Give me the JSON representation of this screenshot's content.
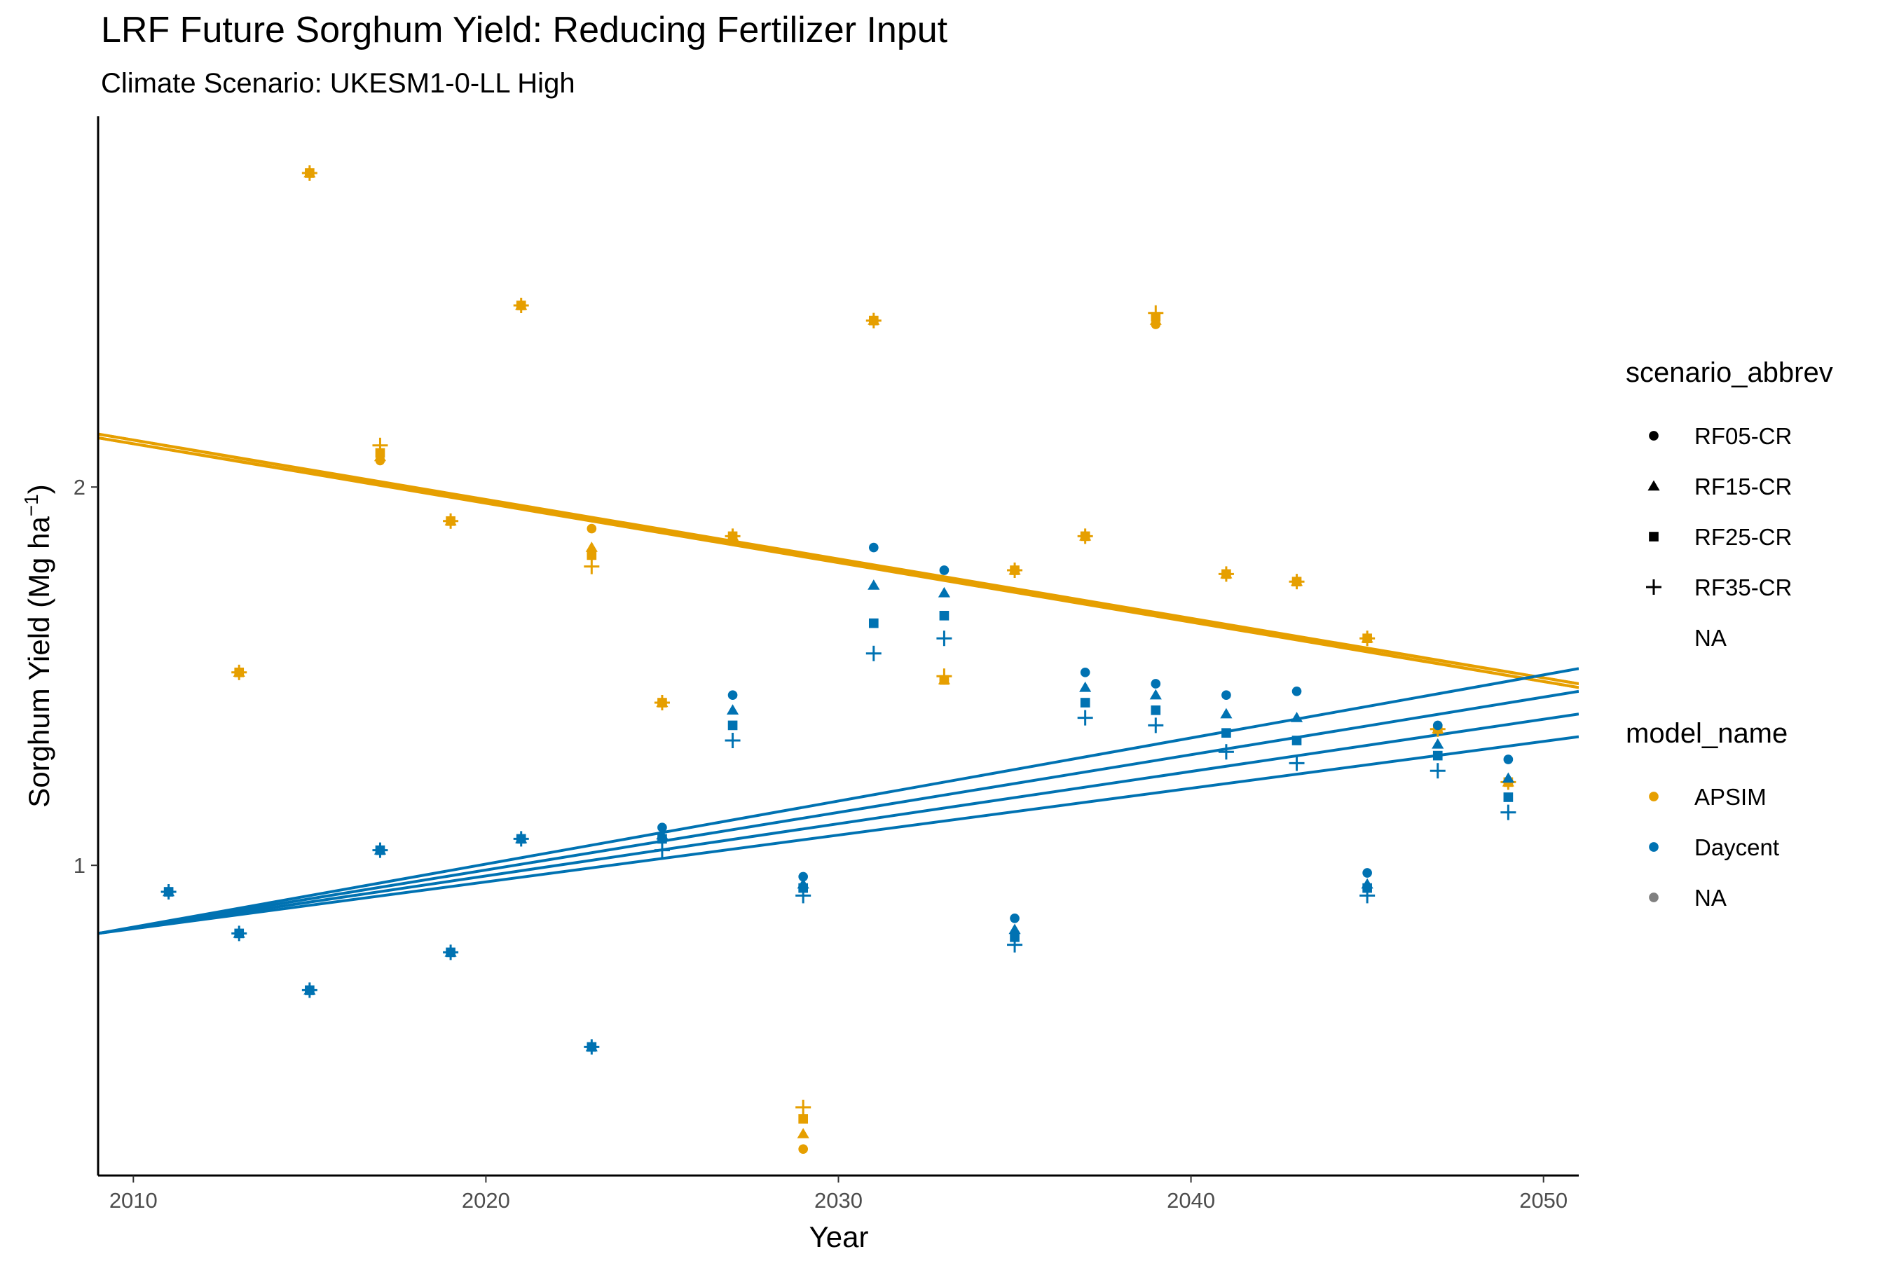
{
  "colors": {
    "APSIM": "#E69F00",
    "Daycent": "#0072B2",
    "NA": "#808080"
  },
  "chart_data": {
    "type": "scatter",
    "title": "LRF Future Sorghum Yield: Reducing Fertilizer Input",
    "subtitle": "Climate Scenario: UKESM1-0-LL High",
    "xlabel": "Year",
    "ylabel": "Sorghum Yield (Mg ha",
    "ylabel_superscript": "−1",
    "ylabel_suffix": ")",
    "xlim": [
      2009,
      2051
    ],
    "ylim": [
      0.18,
      2.98
    ],
    "xticks": [
      2010,
      2020,
      2030,
      2040,
      2050
    ],
    "yticks": [
      1,
      2
    ],
    "grid": false,
    "legend_position": "right",
    "legends": [
      {
        "title": "scenario_abbrev",
        "kind": "shape",
        "items": [
          {
            "label": "RF05-CR",
            "shape": "circle"
          },
          {
            "label": "RF15-CR",
            "shape": "triangle"
          },
          {
            "label": "RF25-CR",
            "shape": "square"
          },
          {
            "label": "RF35-CR",
            "shape": "plus"
          },
          {
            "label": "NA",
            "shape": "none"
          }
        ]
      },
      {
        "title": "model_name",
        "kind": "color",
        "items": [
          {
            "label": "APSIM",
            "color": "#E69F00"
          },
          {
            "label": "Daycent",
            "color": "#0072B2"
          },
          {
            "label": "NA",
            "color": "#808080"
          }
        ]
      }
    ],
    "x": [
      2011,
      2013,
      2015,
      2017,
      2019,
      2021,
      2023,
      2025,
      2027,
      2029,
      2031,
      2033,
      2035,
      2037,
      2039,
      2041,
      2043,
      2045,
      2047,
      2049
    ],
    "series": [
      {
        "model": "APSIM",
        "scenario": "RF05-CR",
        "shape": "circle",
        "values": [
          null,
          1.51,
          2.83,
          2.07,
          1.91,
          2.48,
          1.89,
          1.43,
          1.87,
          0.25,
          2.44,
          1.49,
          1.78,
          1.87,
          2.43,
          1.77,
          1.75,
          1.6,
          1.36,
          1.22
        ],
        "trend": [
          2.13,
          1.48
        ]
      },
      {
        "model": "APSIM",
        "scenario": "RF15-CR",
        "shape": "triangle",
        "values": [
          null,
          1.51,
          2.83,
          2.08,
          1.91,
          2.48,
          1.84,
          1.43,
          1.87,
          0.29,
          2.44,
          1.49,
          1.78,
          1.87,
          2.44,
          1.77,
          1.75,
          1.6,
          1.36,
          1.22
        ],
        "trend": [
          2.13,
          1.47
        ]
      },
      {
        "model": "APSIM",
        "scenario": "RF25-CR",
        "shape": "square",
        "values": [
          null,
          1.51,
          2.83,
          2.09,
          1.91,
          2.48,
          1.82,
          1.43,
          1.87,
          0.33,
          2.44,
          1.49,
          1.78,
          1.87,
          2.45,
          1.77,
          1.75,
          1.6,
          1.36,
          1.22
        ],
        "trend": [
          2.14,
          1.48
        ]
      },
      {
        "model": "APSIM",
        "scenario": "RF35-CR",
        "shape": "plus",
        "values": [
          null,
          1.51,
          2.83,
          2.11,
          1.91,
          2.48,
          1.79,
          1.43,
          1.87,
          0.36,
          2.44,
          1.5,
          1.78,
          1.87,
          2.46,
          1.77,
          1.75,
          1.6,
          1.36,
          1.22
        ],
        "trend": [
          2.14,
          1.47
        ]
      },
      {
        "model": "Daycent",
        "scenario": "RF05-CR",
        "shape": "circle",
        "values": [
          0.93,
          0.82,
          0.67,
          1.04,
          0.77,
          1.07,
          0.52,
          1.1,
          1.45,
          0.97,
          1.84,
          1.78,
          0.86,
          1.51,
          1.48,
          1.45,
          1.46,
          0.98,
          1.37,
          1.28
        ],
        "trend": [
          0.82,
          1.52
        ]
      },
      {
        "model": "Daycent",
        "scenario": "RF15-CR",
        "shape": "triangle",
        "values": [
          0.93,
          0.82,
          0.67,
          1.04,
          0.77,
          1.07,
          0.52,
          1.08,
          1.41,
          0.95,
          1.74,
          1.72,
          0.83,
          1.47,
          1.45,
          1.4,
          1.39,
          0.95,
          1.32,
          1.23
        ],
        "trend": [
          0.82,
          1.46
        ]
      },
      {
        "model": "Daycent",
        "scenario": "RF25-CR",
        "shape": "square",
        "values": [
          0.93,
          0.82,
          0.67,
          1.04,
          0.77,
          1.07,
          0.52,
          1.07,
          1.37,
          0.94,
          1.64,
          1.66,
          0.81,
          1.43,
          1.41,
          1.35,
          1.33,
          0.94,
          1.29,
          1.18
        ],
        "trend": [
          0.82,
          1.4
        ]
      },
      {
        "model": "Daycent",
        "scenario": "RF35-CR",
        "shape": "plus",
        "values": [
          0.93,
          0.82,
          0.67,
          1.04,
          0.77,
          1.07,
          0.52,
          1.04,
          1.33,
          0.92,
          1.56,
          1.6,
          0.79,
          1.39,
          1.37,
          1.3,
          1.27,
          0.92,
          1.25,
          1.14
        ],
        "trend": [
          0.82,
          1.34
        ]
      }
    ]
  }
}
